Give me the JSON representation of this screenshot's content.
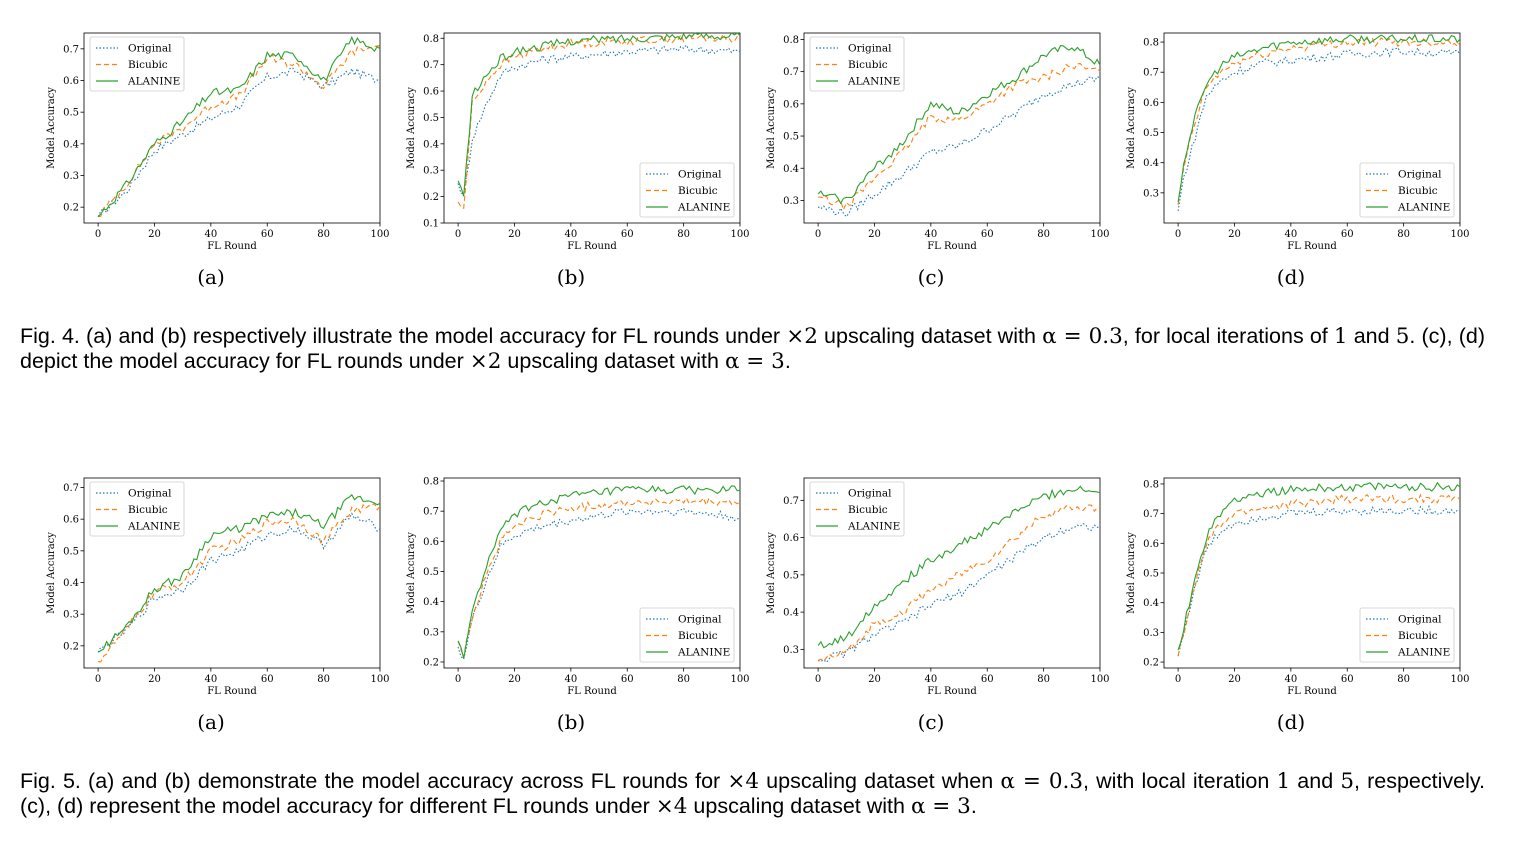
{
  "figures": [
    {
      "caption_parts": [
        {
          "t": "Fig. 4.  (a) and (b) respectively illustrate the model accuracy for FL rounds under "
        },
        {
          "t": "×2",
          "m": 1
        },
        {
          "t": " upscaling dataset with "
        },
        {
          "t": "α = 0.3",
          "m": 1
        },
        {
          "t": ", for local iterations of "
        },
        {
          "t": "1",
          "m": 1
        },
        {
          "t": " and "
        },
        {
          "t": "5",
          "m": 1
        },
        {
          "t": ". (c), (d) depict the model accuracy for FL rounds under "
        },
        {
          "t": "×2",
          "m": 1
        },
        {
          "t": " upscaling dataset with "
        },
        {
          "t": "α = 3",
          "m": 1
        },
        {
          "t": "."
        }
      ]
    },
    {
      "caption_parts": [
        {
          "t": "Fig. 5.  (a) and (b) demonstrate the model accuracy across FL rounds for "
        },
        {
          "t": "×4",
          "m": 1
        },
        {
          "t": " upscaling dataset when "
        },
        {
          "t": "α = 0.3",
          "m": 1
        },
        {
          "t": ", with local iteration "
        },
        {
          "t": "1",
          "m": 1
        },
        {
          "t": " and "
        },
        {
          "t": "5",
          "m": 1
        },
        {
          "t": ", respectively. (c), (d) represent the model accuracy for different FL rounds under "
        },
        {
          "t": "×4",
          "m": 1
        },
        {
          "t": " upscaling dataset with "
        },
        {
          "t": "α = 3",
          "m": 1
        },
        {
          "t": "."
        }
      ]
    }
  ],
  "colors": {
    "Original": "#1f77b4",
    "Bicubic": "#ff7f0e",
    "ALANINE": "#2ca02c"
  },
  "chart_data": [
    {
      "fig": 4,
      "label": "(a)",
      "type": "line",
      "xlabel": "FL Round",
      "ylabel": "Model Accuracy",
      "xlim": [
        -5,
        100
      ],
      "ylim": [
        0.15,
        0.75
      ],
      "xticks": [
        0,
        20,
        40,
        60,
        80,
        100
      ],
      "yticks": [
        0.2,
        0.3,
        0.4,
        0.5,
        0.6,
        0.7
      ],
      "legend": "top-left",
      "x": [
        0,
        10,
        20,
        30,
        40,
        50,
        60,
        70,
        80,
        90,
        100
      ],
      "series": [
        {
          "name": "Original",
          "values": [
            0.17,
            0.25,
            0.38,
            0.43,
            0.48,
            0.52,
            0.61,
            0.63,
            0.58,
            0.63,
            0.6
          ]
        },
        {
          "name": "Bicubic",
          "values": [
            0.17,
            0.27,
            0.4,
            0.45,
            0.52,
            0.55,
            0.67,
            0.65,
            0.58,
            0.69,
            0.71
          ]
        },
        {
          "name": "ALANINE",
          "values": [
            0.17,
            0.27,
            0.4,
            0.47,
            0.56,
            0.57,
            0.68,
            0.68,
            0.6,
            0.73,
            0.7
          ]
        }
      ]
    },
    {
      "fig": 4,
      "label": "(b)",
      "type": "line",
      "xlabel": "FL Round",
      "ylabel": "Model Accuracy",
      "xlim": [
        -5,
        100
      ],
      "ylim": [
        0.1,
        0.82
      ],
      "xticks": [
        0,
        20,
        40,
        60,
        80,
        100
      ],
      "yticks": [
        0.1,
        0.2,
        0.3,
        0.4,
        0.5,
        0.6,
        0.7,
        0.8
      ],
      "legend": "bottom-right",
      "x": [
        0,
        2,
        5,
        10,
        15,
        20,
        30,
        40,
        60,
        80,
        100
      ],
      "series": [
        {
          "name": "Original",
          "values": [
            0.25,
            0.2,
            0.42,
            0.55,
            0.66,
            0.69,
            0.72,
            0.73,
            0.75,
            0.76,
            0.75
          ]
        },
        {
          "name": "Bicubic",
          "values": [
            0.18,
            0.15,
            0.55,
            0.64,
            0.7,
            0.73,
            0.76,
            0.78,
            0.79,
            0.8,
            0.8
          ]
        },
        {
          "name": "ALANINE",
          "values": [
            0.26,
            0.2,
            0.58,
            0.66,
            0.72,
            0.75,
            0.77,
            0.79,
            0.8,
            0.81,
            0.81
          ]
        }
      ]
    },
    {
      "fig": 4,
      "label": "(c)",
      "type": "line",
      "xlabel": "FL Round",
      "ylabel": "Model Accuracy",
      "xlim": [
        -5,
        100
      ],
      "ylim": [
        0.23,
        0.82
      ],
      "xticks": [
        0,
        20,
        40,
        60,
        80,
        100
      ],
      "yticks": [
        0.3,
        0.4,
        0.5,
        0.6,
        0.7,
        0.8
      ],
      "legend": "top-left",
      "x": [
        0,
        10,
        20,
        30,
        40,
        50,
        60,
        70,
        80,
        90,
        100
      ],
      "series": [
        {
          "name": "Original",
          "values": [
            0.28,
            0.26,
            0.32,
            0.38,
            0.45,
            0.47,
            0.52,
            0.57,
            0.63,
            0.66,
            0.68
          ]
        },
        {
          "name": "Bicubic",
          "values": [
            0.31,
            0.28,
            0.37,
            0.45,
            0.56,
            0.55,
            0.6,
            0.66,
            0.68,
            0.72,
            0.7
          ]
        },
        {
          "name": "ALANINE",
          "values": [
            0.32,
            0.3,
            0.4,
            0.48,
            0.6,
            0.57,
            0.63,
            0.68,
            0.75,
            0.78,
            0.72
          ]
        }
      ]
    },
    {
      "fig": 4,
      "label": "(d)",
      "type": "line",
      "xlabel": "FL Round",
      "ylabel": "Model Accuracy",
      "xlim": [
        -5,
        100
      ],
      "ylim": [
        0.2,
        0.83
      ],
      "xticks": [
        0,
        20,
        40,
        60,
        80,
        100
      ],
      "yticks": [
        0.3,
        0.4,
        0.5,
        0.6,
        0.7,
        0.8
      ],
      "legend": "bottom-right",
      "x": [
        0,
        2,
        5,
        10,
        15,
        20,
        30,
        40,
        60,
        80,
        100
      ],
      "series": [
        {
          "name": "Original",
          "values": [
            0.24,
            0.35,
            0.45,
            0.62,
            0.67,
            0.7,
            0.73,
            0.74,
            0.76,
            0.77,
            0.76
          ]
        },
        {
          "name": "Bicubic",
          "values": [
            0.26,
            0.38,
            0.5,
            0.65,
            0.7,
            0.73,
            0.76,
            0.78,
            0.8,
            0.8,
            0.8
          ]
        },
        {
          "name": "ALANINE",
          "values": [
            0.27,
            0.4,
            0.52,
            0.66,
            0.72,
            0.75,
            0.78,
            0.8,
            0.81,
            0.81,
            0.81
          ]
        }
      ]
    },
    {
      "fig": 5,
      "label": "(a)",
      "type": "line",
      "xlabel": "FL Round",
      "ylabel": "Model Accuracy",
      "xlim": [
        -5,
        100
      ],
      "ylim": [
        0.13,
        0.73
      ],
      "xticks": [
        0,
        20,
        40,
        60,
        80,
        100
      ],
      "yticks": [
        0.2,
        0.3,
        0.4,
        0.5,
        0.6,
        0.7
      ],
      "legend": "top-left",
      "x": [
        0,
        10,
        20,
        30,
        40,
        50,
        60,
        70,
        80,
        90,
        100
      ],
      "series": [
        {
          "name": "Original",
          "values": [
            0.18,
            0.25,
            0.35,
            0.38,
            0.47,
            0.5,
            0.55,
            0.57,
            0.52,
            0.61,
            0.57
          ]
        },
        {
          "name": "Bicubic",
          "values": [
            0.15,
            0.25,
            0.37,
            0.4,
            0.5,
            0.53,
            0.59,
            0.6,
            0.53,
            0.63,
            0.64
          ]
        },
        {
          "name": "ALANINE",
          "values": [
            0.18,
            0.26,
            0.38,
            0.42,
            0.55,
            0.57,
            0.61,
            0.62,
            0.58,
            0.67,
            0.65
          ]
        }
      ]
    },
    {
      "fig": 5,
      "label": "(b)",
      "type": "line",
      "xlabel": "FL Round",
      "ylabel": "Model Accuracy",
      "xlim": [
        -5,
        100
      ],
      "ylim": [
        0.18,
        0.81
      ],
      "xticks": [
        0,
        20,
        40,
        60,
        80,
        100
      ],
      "yticks": [
        0.2,
        0.3,
        0.4,
        0.5,
        0.6,
        0.7,
        0.8
      ],
      "legend": "bottom-right",
      "x": [
        0,
        2,
        5,
        10,
        15,
        20,
        30,
        40,
        60,
        80,
        100
      ],
      "series": [
        {
          "name": "Original",
          "values": [
            0.25,
            0.21,
            0.34,
            0.47,
            0.58,
            0.62,
            0.65,
            0.67,
            0.7,
            0.7,
            0.68
          ]
        },
        {
          "name": "Bicubic",
          "values": [
            0.27,
            0.22,
            0.35,
            0.49,
            0.6,
            0.65,
            0.69,
            0.71,
            0.73,
            0.73,
            0.73
          ]
        },
        {
          "name": "ALANINE",
          "values": [
            0.27,
            0.22,
            0.36,
            0.52,
            0.63,
            0.69,
            0.73,
            0.75,
            0.77,
            0.77,
            0.77
          ]
        }
      ]
    },
    {
      "fig": 5,
      "label": "(c)",
      "type": "line",
      "xlabel": "FL Round",
      "ylabel": "Model Accuracy",
      "xlim": [
        -5,
        100
      ],
      "ylim": [
        0.25,
        0.76
      ],
      "xticks": [
        0,
        20,
        40,
        60,
        80,
        100
      ],
      "yticks": [
        0.3,
        0.4,
        0.5,
        0.6,
        0.7
      ],
      "legend": "top-left",
      "x": [
        0,
        10,
        20,
        30,
        40,
        50,
        60,
        70,
        80,
        90,
        100
      ],
      "series": [
        {
          "name": "Original",
          "values": [
            0.27,
            0.29,
            0.34,
            0.37,
            0.42,
            0.45,
            0.5,
            0.55,
            0.6,
            0.63,
            0.63
          ]
        },
        {
          "name": "Bicubic",
          "values": [
            0.27,
            0.29,
            0.37,
            0.4,
            0.46,
            0.5,
            0.54,
            0.6,
            0.66,
            0.68,
            0.68
          ]
        },
        {
          "name": "ALANINE",
          "values": [
            0.31,
            0.33,
            0.42,
            0.48,
            0.54,
            0.58,
            0.62,
            0.67,
            0.71,
            0.73,
            0.72
          ]
        }
      ]
    },
    {
      "fig": 5,
      "label": "(d)",
      "type": "line",
      "xlabel": "FL Round",
      "ylabel": "Model Accuracy",
      "xlim": [
        -5,
        100
      ],
      "ylim": [
        0.18,
        0.82
      ],
      "xticks": [
        0,
        20,
        40,
        60,
        80,
        100
      ],
      "yticks": [
        0.2,
        0.3,
        0.4,
        0.5,
        0.6,
        0.7,
        0.8
      ],
      "legend": "bottom-right",
      "x": [
        0,
        2,
        5,
        10,
        15,
        20,
        30,
        40,
        60,
        80,
        100
      ],
      "series": [
        {
          "name": "Original",
          "values": [
            0.22,
            0.3,
            0.42,
            0.58,
            0.64,
            0.67,
            0.69,
            0.7,
            0.71,
            0.71,
            0.71
          ]
        },
        {
          "name": "Bicubic",
          "values": [
            0.22,
            0.3,
            0.42,
            0.6,
            0.66,
            0.7,
            0.72,
            0.73,
            0.75,
            0.75,
            0.75
          ]
        },
        {
          "name": "ALANINE",
          "values": [
            0.24,
            0.32,
            0.44,
            0.62,
            0.7,
            0.75,
            0.77,
            0.78,
            0.79,
            0.79,
            0.79
          ]
        }
      ]
    }
  ]
}
